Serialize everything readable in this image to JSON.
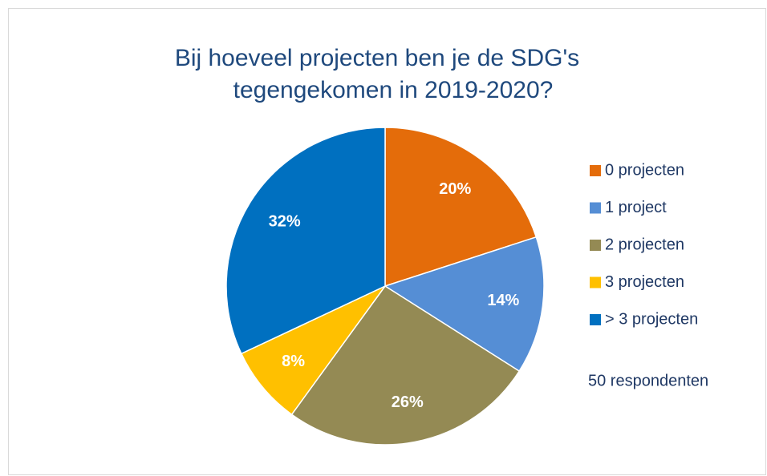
{
  "chart_data": {
    "type": "pie",
    "title": [
      "Bij hoeveel projecten ben je de SDG's",
      "tegengekomen in 2019-2020?"
    ],
    "categories": [
      "0 projecten",
      "1 project",
      "2 projecten",
      "3 projecten",
      "> 3 projecten"
    ],
    "values": [
      20,
      14,
      26,
      8,
      32
    ],
    "value_labels": [
      "20%",
      "14%",
      "26%",
      "8%",
      "32%"
    ],
    "colors": [
      "#e46c0a",
      "#558ed5",
      "#948a54",
      "#ffc000",
      "#0070c0"
    ],
    "legend": "right",
    "annotations": [
      "50 respondenten"
    ]
  }
}
